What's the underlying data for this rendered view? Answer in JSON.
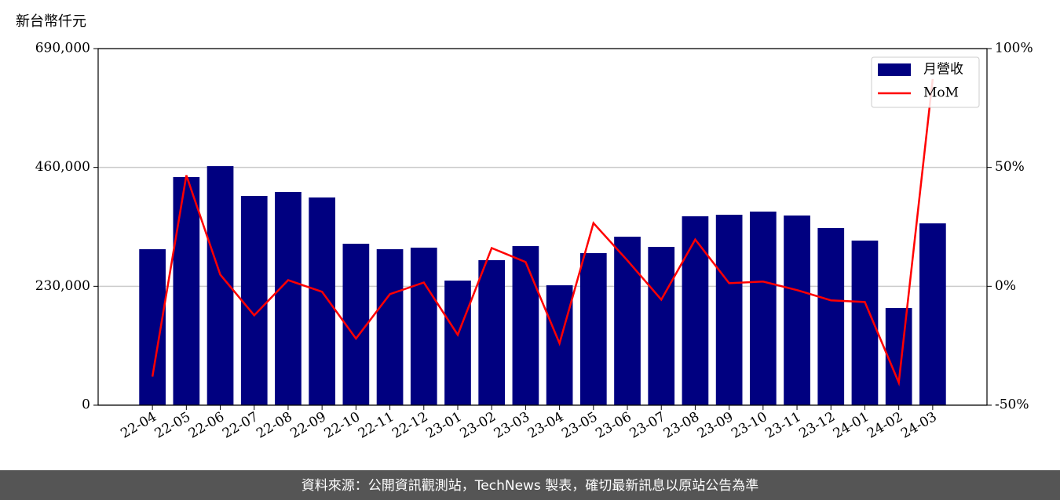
{
  "chart_data": {
    "type": "bar",
    "y_label": "新台幣仟元",
    "categories": [
      "22-04",
      "22-05",
      "22-06",
      "22-07",
      "22-08",
      "22-09",
      "22-10",
      "22-11",
      "22-12",
      "23-01",
      "23-02",
      "23-03",
      "23-04",
      "23-05",
      "23-06",
      "23-07",
      "23-08",
      "23-09",
      "23-10",
      "23-11",
      "23-12",
      "24-01",
      "24-02",
      "24-03"
    ],
    "series": [
      {
        "name": "月營收",
        "color": "#000080",
        "values": [
          301800,
          441300,
          462500,
          404900,
          412500,
          401900,
          312400,
          301800,
          304800,
          241100,
          280600,
          307800,
          232000,
          294200,
          326000,
          306300,
          365500,
          368500,
          374600,
          367000,
          342700,
          318500,
          188000,
          351800
        ]
      },
      {
        "name": "MoM",
        "color": "#ff0000",
        "type": "line",
        "axis": "y2",
        "values": [
          -38,
          46.7,
          4.9,
          -12.2,
          2.6,
          -2.3,
          -22,
          -3.3,
          1.6,
          -20.4,
          16.1,
          10.2,
          -24,
          26.6,
          10.9,
          -5.6,
          19.7,
          1.3,
          2.0,
          -1.6,
          -5.9,
          -6.6,
          -40.5,
          87.2
        ]
      }
    ],
    "ylim": [
      0,
      690000
    ],
    "yticks": [
      0,
      {
        "value": 230000,
        "label": "230,000"
      },
      {
        "value": 460000,
        "label": "460,000"
      },
      {
        "value": 690000,
        "label": "690,000"
      }
    ],
    "y2lim": [
      -50,
      100
    ],
    "y2ticks": [
      {
        "value": -50,
        "label": "-50%"
      },
      {
        "value": 0,
        "label": "0%"
      },
      {
        "value": 50,
        "label": "50%"
      },
      {
        "value": 100,
        "label": "100%"
      }
    ],
    "grid": true,
    "legend": "upper right"
  },
  "footer": "資料來源：公開資訊觀測站，TechNews 製表，確切最新訊息以原站公告為準"
}
